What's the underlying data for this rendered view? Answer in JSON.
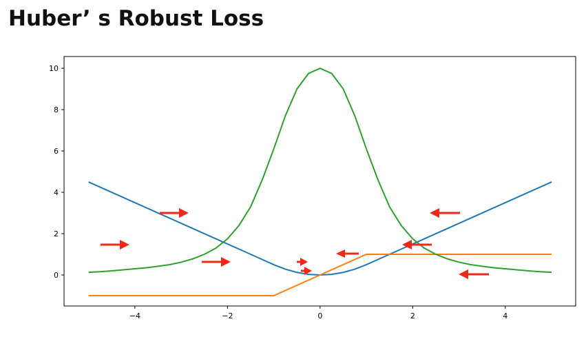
{
  "chart_data": {
    "type": "line",
    "title": "Huber’ s Robust Loss",
    "x": [
      -5,
      -4.75,
      -4.5,
      -4.25,
      -4,
      -3.75,
      -3.5,
      -3.25,
      -3,
      -2.75,
      -2.5,
      -2.25,
      -2,
      -1.75,
      -1.5,
      -1.25,
      -1,
      -0.75,
      -0.5,
      -0.25,
      0,
      0.25,
      0.5,
      0.75,
      1,
      1.25,
      1.5,
      1.75,
      2,
      2.25,
      2.5,
      2.75,
      3,
      3.25,
      3.5,
      3.75,
      4,
      4.25,
      4.5,
      4.75,
      5
    ],
    "series": [
      {
        "color": "#1f77b4",
        "values": [
          4.5,
          4.25,
          4,
          3.75,
          3.5,
          3.25,
          3,
          2.75,
          2.5,
          2.25,
          2,
          1.75,
          1.5,
          1.25,
          1,
          0.75,
          0.5,
          0.28125,
          0.125,
          0.03125,
          0,
          0.03125,
          0.125,
          0.28125,
          0.5,
          0.75,
          1,
          1.25,
          1.5,
          1.75,
          2,
          2.25,
          2.5,
          2.75,
          3,
          3.25,
          3.5,
          3.75,
          4,
          4.25,
          4.5
        ]
      },
      {
        "color": "#ff7f0e",
        "values": [
          -1,
          -1,
          -1,
          -1,
          -1,
          -1,
          -1,
          -1,
          -1,
          -1,
          -1,
          -1,
          -1,
          -1,
          -1,
          -1,
          -1,
          -0.75,
          -0.5,
          -0.25,
          0,
          0.25,
          0.5,
          0.75,
          1,
          1,
          1,
          1,
          1,
          1,
          1,
          1,
          1,
          1,
          1,
          1,
          1,
          1,
          1,
          1,
          1
        ]
      },
      {
        "color": "#2ca02c",
        "values": [
          0.13,
          0.16,
          0.2,
          0.25,
          0.3,
          0.35,
          0.42,
          0.5,
          0.62,
          0.78,
          1.0,
          1.3,
          1.75,
          2.4,
          3.3,
          4.6,
          6.1,
          7.7,
          9.0,
          9.75,
          10,
          9.75,
          9.0,
          7.7,
          6.1,
          4.6,
          3.3,
          2.4,
          1.75,
          1.3,
          1.0,
          0.78,
          0.62,
          0.5,
          0.42,
          0.35,
          0.3,
          0.25,
          0.2,
          0.16,
          0.13
        ]
      }
    ],
    "xlim": [
      -5.53,
      5.52
    ],
    "ylim": [
      -1.5,
      10.57
    ],
    "xticks": [
      {
        "value": -4,
        "label": "−4"
      },
      {
        "value": -2,
        "label": "−2"
      },
      0,
      2,
      4
    ],
    "yticks": [
      0,
      2,
      4,
      6,
      8,
      10
    ]
  }
}
